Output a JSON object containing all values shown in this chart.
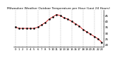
{
  "title": "Milwaukee Weather Outdoor Temperature per Hour (Last 24 Hours)",
  "hours": [
    0,
    1,
    2,
    3,
    4,
    5,
    6,
    7,
    8,
    9,
    10,
    11,
    12,
    13,
    14,
    15,
    16,
    17,
    18,
    19,
    20,
    21,
    22,
    23
  ],
  "temps": [
    35,
    34,
    34,
    34,
    34,
    34,
    35,
    37,
    39,
    42,
    44,
    46,
    45,
    43,
    42,
    40,
    38,
    36,
    33,
    31,
    29,
    27,
    25,
    22
  ],
  "line_color": "#cc0000",
  "dot_color": "#000000",
  "grid_color": "#888888",
  "background_color": "#ffffff",
  "ylim": [
    18,
    50
  ],
  "yticks": [
    20,
    25,
    30,
    35,
    40,
    45
  ],
  "grid_hours": [
    0,
    3,
    6,
    9,
    12,
    15,
    18,
    21,
    23
  ],
  "ylabel_fontsize": 3.0,
  "xlabel_fontsize": 2.8,
  "title_fontsize": 3.2
}
